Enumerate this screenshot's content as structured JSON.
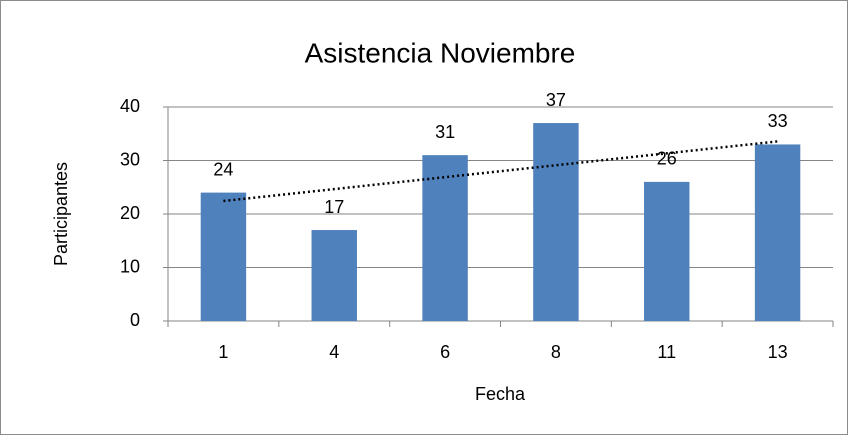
{
  "chart_data": {
    "type": "bar",
    "title": "Asistencia Noviembre",
    "x_label": "Fecha",
    "y_label": "Participantes",
    "categories": [
      "1",
      "4",
      "6",
      "8",
      "11",
      "13"
    ],
    "values": [
      24,
      17,
      31,
      37,
      26,
      33
    ],
    "color": "#4f81bd",
    "ylim": [
      0,
      40
    ],
    "yticks": [
      0,
      10,
      20,
      30,
      40
    ],
    "grid": true,
    "trendline": "linear"
  }
}
